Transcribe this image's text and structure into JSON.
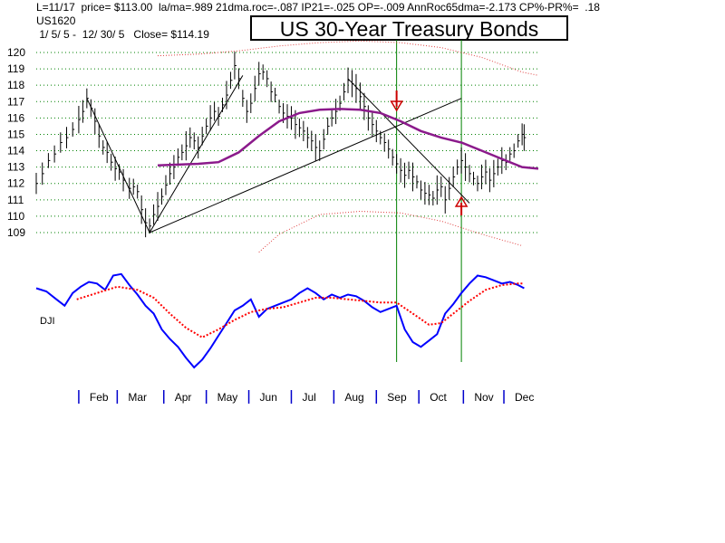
{
  "header": {
    "stats_line": "L=11/17  price= $113.00  la/ma=.989 21dma.roc=-.087 IP21=-.025 OP=-.009 AnnRoc65dma=-2.173 CP%-PR%=  .18",
    "ticker": "US1620",
    "date_range": " 1/ 5/ 5 -  12/ 30/ 5   Close= $114.19"
  },
  "chart_data": {
    "type": "line",
    "title": "US 30-Year Treasury Bonds",
    "y_ticks": [
      "120",
      "119",
      "118",
      "117",
      "116",
      "115",
      "114",
      "113",
      "112",
      "111",
      "110",
      "109"
    ],
    "ylim": [
      109,
      120
    ],
    "months": [
      "Feb",
      "Mar",
      "Apr",
      "May",
      "Jun",
      "Jul",
      "Aug",
      "Sep",
      "Oct",
      "Nov",
      "Dec"
    ],
    "x_range": [
      0,
      248
    ],
    "indicator_label": "DJI",
    "price_closes": [
      [
        0,
        112.0
      ],
      [
        3,
        112.6
      ],
      [
        6,
        113.4
      ],
      [
        9,
        113.8
      ],
      [
        12,
        114.5
      ],
      [
        15,
        114.8
      ],
      [
        18,
        115.3
      ],
      [
        21,
        115.9
      ],
      [
        23,
        116.4
      ],
      [
        25,
        117.2
      ],
      [
        27,
        116.6
      ],
      [
        29,
        115.8
      ],
      [
        31,
        114.9
      ],
      [
        33,
        114.2
      ],
      [
        35,
        113.9
      ],
      [
        37,
        113.3
      ],
      [
        39,
        112.9
      ],
      [
        41,
        112.7
      ],
      [
        43,
        112.2
      ],
      [
        46,
        111.7
      ],
      [
        48,
        111.8
      ],
      [
        50,
        111.5
      ],
      [
        52,
        110.4
      ],
      [
        54,
        109.6
      ],
      [
        56,
        109.4
      ],
      [
        58,
        110.1
      ],
      [
        60,
        110.6
      ],
      [
        62,
        111.2
      ],
      [
        64,
        111.9
      ],
      [
        66,
        112.6
      ],
      [
        68,
        113.0
      ],
      [
        70,
        113.6
      ],
      [
        72,
        113.9
      ],
      [
        74,
        114.3
      ],
      [
        76,
        114.8
      ],
      [
        78,
        114.6
      ],
      [
        80,
        114.2
      ],
      [
        82,
        114.9
      ],
      [
        84,
        115.5
      ],
      [
        86,
        116.0
      ],
      [
        88,
        116.4
      ],
      [
        90,
        116.1
      ],
      [
        92,
        116.8
      ],
      [
        94,
        117.4
      ],
      [
        96,
        118.3
      ],
      [
        98,
        119.2
      ],
      [
        100,
        118.4
      ],
      [
        102,
        117.2
      ],
      [
        104,
        116.4
      ],
      [
        106,
        116.9
      ],
      [
        108,
        117.8
      ],
      [
        110,
        118.7
      ],
      [
        112,
        118.8
      ],
      [
        114,
        118.4
      ],
      [
        116,
        117.6
      ],
      [
        118,
        117.4
      ],
      [
        120,
        116.7
      ],
      [
        122,
        116.3
      ],
      [
        124,
        116.1
      ],
      [
        126,
        116.0
      ],
      [
        128,
        115.6
      ],
      [
        130,
        115.4
      ],
      [
        132,
        115.2
      ],
      [
        134,
        114.8
      ],
      [
        136,
        114.6
      ],
      [
        138,
        114.2
      ],
      [
        140,
        114.0
      ],
      [
        142,
        114.7
      ],
      [
        144,
        115.5
      ],
      [
        146,
        116.0
      ],
      [
        148,
        116.4
      ],
      [
        150,
        116.9
      ],
      [
        152,
        117.6
      ],
      [
        154,
        118.3
      ],
      [
        156,
        118.1
      ],
      [
        158,
        117.8
      ],
      [
        160,
        117.3
      ],
      [
        162,
        116.7
      ],
      [
        164,
        116.0
      ],
      [
        166,
        115.6
      ],
      [
        168,
        115.2
      ],
      [
        170,
        114.8
      ],
      [
        172,
        114.5
      ],
      [
        174,
        114.1
      ],
      [
        176,
        113.6
      ],
      [
        178,
        113.2
      ],
      [
        180,
        112.8
      ],
      [
        182,
        112.5
      ],
      [
        184,
        112.8
      ],
      [
        186,
        112.4
      ],
      [
        188,
        112.1
      ],
      [
        190,
        111.6
      ],
      [
        192,
        111.4
      ],
      [
        194,
        111.3
      ],
      [
        196,
        111.1
      ],
      [
        198,
        111.6
      ],
      [
        200,
        111.8
      ],
      [
        202,
        111.0
      ],
      [
        204,
        111.7
      ],
      [
        206,
        112.4
      ],
      [
        208,
        113.0
      ],
      [
        210,
        113.4
      ],
      [
        212,
        113.0
      ],
      [
        214,
        112.6
      ],
      [
        216,
        112.3
      ],
      [
        218,
        112.0
      ],
      [
        220,
        112.4
      ],
      [
        222,
        112.7
      ],
      [
        224,
        112.2
      ],
      [
        226,
        112.6
      ],
      [
        228,
        113.0
      ],
      [
        230,
        113.4
      ],
      [
        232,
        113.3
      ],
      [
        234,
        113.8
      ],
      [
        236,
        114.0
      ],
      [
        238,
        114.6
      ],
      [
        240,
        115.0
      ],
      [
        241,
        114.8
      ]
    ],
    "moving_average": [
      [
        60,
        113.1
      ],
      [
        70,
        113.15
      ],
      [
        80,
        113.2
      ],
      [
        90,
        113.3
      ],
      [
        100,
        113.9
      ],
      [
        110,
        114.9
      ],
      [
        120,
        115.8
      ],
      [
        130,
        116.3
      ],
      [
        140,
        116.5
      ],
      [
        150,
        116.55
      ],
      [
        160,
        116.5
      ],
      [
        170,
        116.3
      ],
      [
        180,
        115.8
      ],
      [
        190,
        115.2
      ],
      [
        200,
        114.8
      ],
      [
        210,
        114.5
      ],
      [
        220,
        114.0
      ],
      [
        230,
        113.5
      ],
      [
        240,
        113.0
      ],
      [
        248,
        112.9
      ]
    ],
    "upper_band": [
      [
        60,
        119.8
      ],
      [
        80,
        119.9
      ],
      [
        100,
        120.1
      ],
      [
        120,
        120.4
      ],
      [
        140,
        120.6
      ],
      [
        160,
        120.7
      ],
      [
        180,
        120.6
      ],
      [
        200,
        120.3
      ],
      [
        220,
        119.7
      ],
      [
        240,
        118.8
      ],
      [
        248,
        118.6
      ]
    ],
    "lower_band": [
      [
        110,
        107.8
      ],
      [
        120,
        108.9
      ],
      [
        140,
        110.1
      ],
      [
        160,
        110.3
      ],
      [
        180,
        110.2
      ],
      [
        200,
        109.7
      ],
      [
        220,
        108.9
      ],
      [
        240,
        108.2
      ]
    ],
    "trendlines": [
      [
        [
          25,
          117.2
        ],
        [
          56,
          109.0
        ]
      ],
      [
        [
          56,
          109.0
        ],
        [
          102,
          118.6
        ]
      ],
      [
        [
          56,
          109.0
        ],
        [
          210,
          117.2
        ]
      ],
      [
        [
          154,
          118.4
        ],
        [
          214,
          110.8
        ]
      ]
    ],
    "signals": [
      {
        "type": "sell",
        "x": 178
      },
      {
        "type": "buy",
        "x": 210
      }
    ],
    "vertical_markers": [
      178,
      210
    ],
    "indicator_line": [
      [
        0,
        0.9
      ],
      [
        5,
        0.8
      ],
      [
        10,
        0.55
      ],
      [
        14,
        0.35
      ],
      [
        18,
        0.75
      ],
      [
        22,
        0.95
      ],
      [
        26,
        1.1
      ],
      [
        30,
        1.05
      ],
      [
        34,
        0.85
      ],
      [
        38,
        1.3
      ],
      [
        42,
        1.35
      ],
      [
        46,
        1.0
      ],
      [
        50,
        0.7
      ],
      [
        54,
        0.35
      ],
      [
        58,
        0.1
      ],
      [
        62,
        -0.4
      ],
      [
        66,
        -0.7
      ],
      [
        70,
        -0.95
      ],
      [
        74,
        -1.3
      ],
      [
        78,
        -1.6
      ],
      [
        82,
        -1.35
      ],
      [
        86,
        -1.0
      ],
      [
        90,
        -0.6
      ],
      [
        94,
        -0.2
      ],
      [
        98,
        0.2
      ],
      [
        102,
        0.35
      ],
      [
        106,
        0.55
      ],
      [
        110,
        0.0
      ],
      [
        114,
        0.25
      ],
      [
        118,
        0.35
      ],
      [
        122,
        0.45
      ],
      [
        126,
        0.55
      ],
      [
        130,
        0.75
      ],
      [
        134,
        0.9
      ],
      [
        138,
        0.75
      ],
      [
        142,
        0.55
      ],
      [
        146,
        0.7
      ],
      [
        150,
        0.6
      ],
      [
        154,
        0.7
      ],
      [
        158,
        0.65
      ],
      [
        162,
        0.5
      ],
      [
        166,
        0.3
      ],
      [
        170,
        0.15
      ],
      [
        174,
        0.25
      ],
      [
        178,
        0.35
      ],
      [
        182,
        -0.4
      ],
      [
        186,
        -0.8
      ],
      [
        190,
        -0.95
      ],
      [
        194,
        -0.75
      ],
      [
        198,
        -0.55
      ],
      [
        202,
        0.1
      ],
      [
        206,
        0.4
      ],
      [
        210,
        0.75
      ],
      [
        214,
        1.05
      ],
      [
        218,
        1.3
      ],
      [
        222,
        1.25
      ],
      [
        226,
        1.15
      ],
      [
        230,
        1.05
      ],
      [
        234,
        1.1
      ],
      [
        238,
        1.0
      ],
      [
        241,
        0.9
      ]
    ],
    "indicator_ma": [
      [
        20,
        0.55
      ],
      [
        30,
        0.75
      ],
      [
        40,
        0.95
      ],
      [
        50,
        0.85
      ],
      [
        58,
        0.6
      ],
      [
        66,
        0.1
      ],
      [
        74,
        -0.35
      ],
      [
        82,
        -0.65
      ],
      [
        90,
        -0.4
      ],
      [
        98,
        -0.1
      ],
      [
        106,
        0.15
      ],
      [
        114,
        0.25
      ],
      [
        122,
        0.3
      ],
      [
        130,
        0.45
      ],
      [
        138,
        0.6
      ],
      [
        146,
        0.6
      ],
      [
        154,
        0.55
      ],
      [
        162,
        0.5
      ],
      [
        170,
        0.45
      ],
      [
        178,
        0.45
      ],
      [
        186,
        0.1
      ],
      [
        194,
        -0.25
      ],
      [
        200,
        -0.2
      ],
      [
        206,
        0.1
      ],
      [
        214,
        0.5
      ],
      [
        222,
        0.85
      ],
      [
        230,
        1.0
      ],
      [
        238,
        1.05
      ],
      [
        241,
        1.05
      ]
    ],
    "colors": {
      "price_bars": "#000000",
      "moving_average": "#8b1a8b",
      "bands": "#e04040",
      "trendlines": "#000000",
      "grid": "#008000",
      "vertical_markers": "#008000",
      "indicator_line": "#0000ff",
      "indicator_ma": "#ff0000",
      "signal_arrows": "#cc0000"
    }
  }
}
